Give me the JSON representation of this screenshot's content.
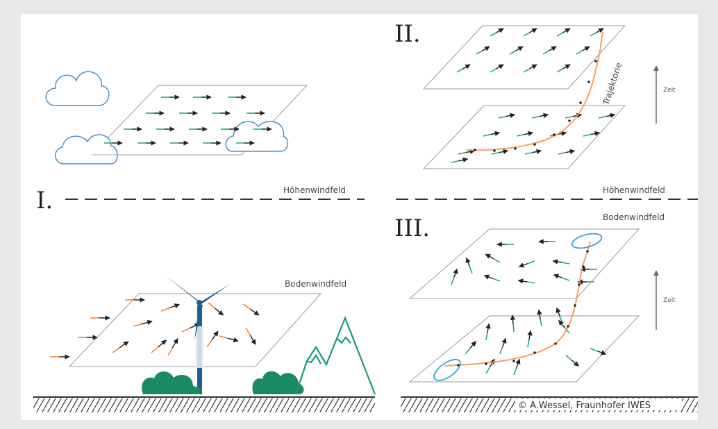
{
  "labels": {
    "section_1": "I.",
    "section_2": "II.",
    "section_3": "III.",
    "upper_wind_left": "Höhenwindfeld",
    "upper_wind_right": "Höhenwindfeld",
    "ground_wind_left": "Bodenwindfeld",
    "ground_wind_right": "Bodenwindfeld",
    "trajectory": "Trajektorie",
    "time_top": "Zeit",
    "time_bottom": "Zeit",
    "copyright": "© A.Wessel, Fraunhofer IWES"
  },
  "colors": {
    "background": "#e8e8e8",
    "panel": "#ffffff",
    "plane_stroke": "#999999",
    "arrow_dark": "#222222",
    "arrow_green": "#1aa37a",
    "arrow_orange": "#f08030",
    "trajectory": "#f4a060",
    "cloud": "#4d8fc7",
    "turbine": "#1c5f95",
    "bushes": "#1a8a62",
    "mountain": "#1a9a6a",
    "vortex": "#3aa0d0"
  },
  "icons": [
    "cloud-icon",
    "wind-turbine-icon",
    "mountain-icon",
    "bush-icon",
    "time-arrow-icon"
  ]
}
